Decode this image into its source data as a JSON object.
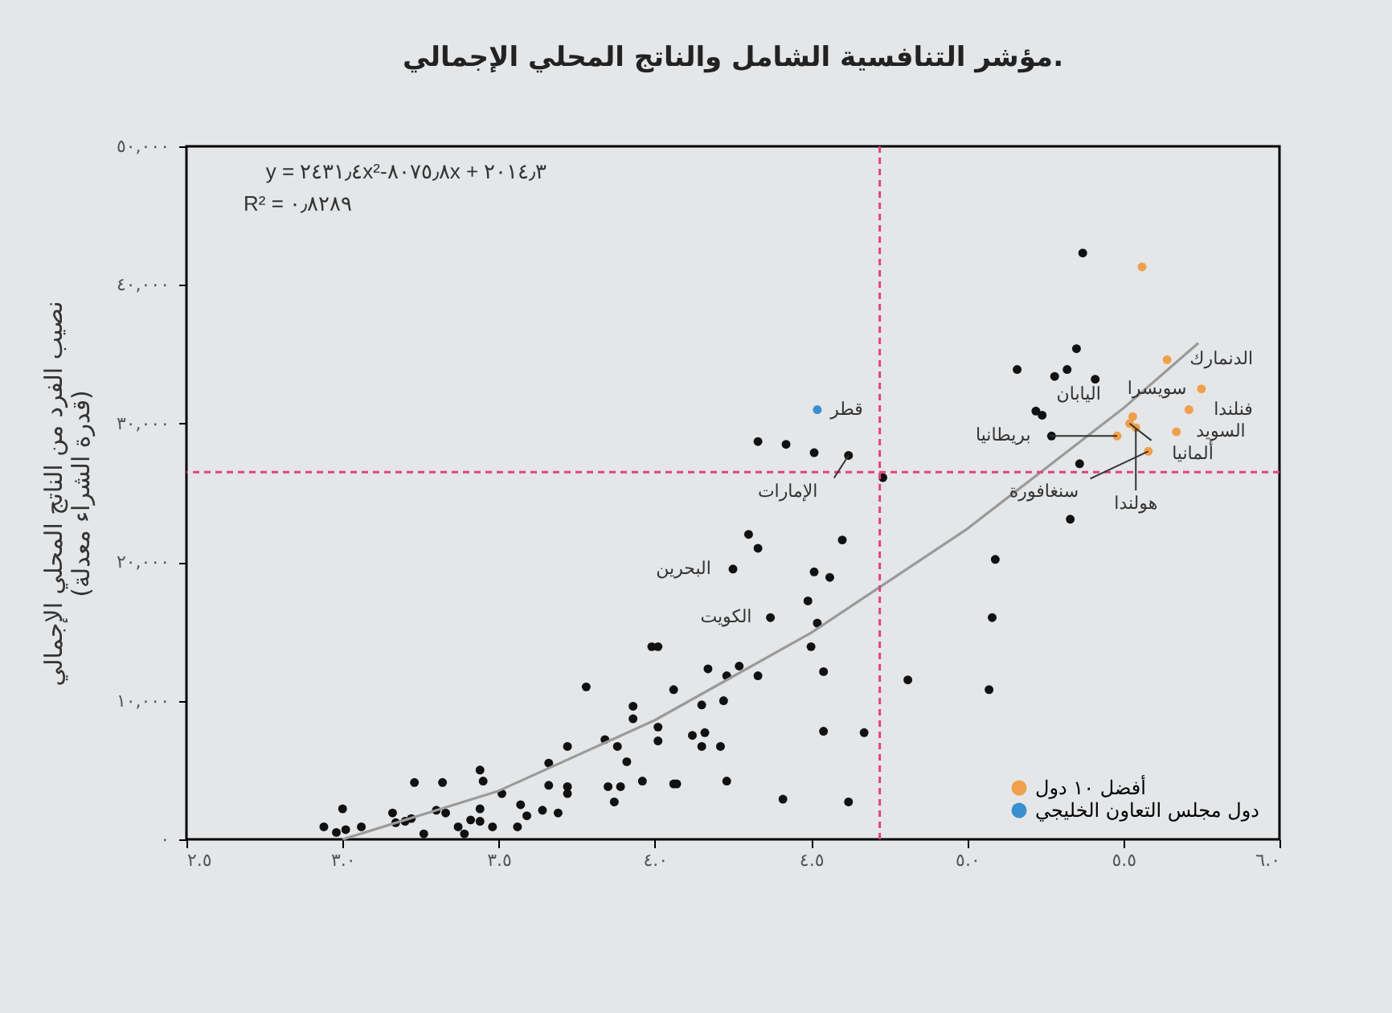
{
  "chart_data": {
    "type": "scatter",
    "title": "مؤشر التنافسية الشامل والناتج المحلي الإجمالي.",
    "ylabel": "نصيب الفرد من الناتج المحلي الإجمالي\n(قدرة الشراء معدلة)",
    "xlim": [
      2.5,
      6.0
    ],
    "ylim": [
      0,
      50000
    ],
    "xticks": [
      {
        "value": 2.5,
        "label": "٢.٥"
      },
      {
        "value": 3.0,
        "label": "٣.٠"
      },
      {
        "value": 3.5,
        "label": "٣.٥"
      },
      {
        "value": 4.0,
        "label": "٤.٠"
      },
      {
        "value": 4.5,
        "label": "٤.٥"
      },
      {
        "value": 5.0,
        "label": "٥.٠"
      },
      {
        "value": 5.5,
        "label": "٥.٥"
      },
      {
        "value": 6.0,
        "label": "٦.٠"
      }
    ],
    "yticks": [
      {
        "value": 0,
        "label": "٠"
      },
      {
        "value": 10000,
        "label": "١٠,٠٠٠"
      },
      {
        "value": 20000,
        "label": "٢٠,٠٠٠"
      },
      {
        "value": 30000,
        "label": "٣٠,٠٠٠"
      },
      {
        "value": 40000,
        "label": "٤٠,٠٠٠"
      },
      {
        "value": 50000,
        "label": "٥٠,٠٠٠"
      }
    ],
    "marker": "circle",
    "legend": "bottom right",
    "series": [
      {
        "color": "#111111",
        "x": [
          3.0,
          2.94,
          2.98,
          3.01,
          3.06,
          3.16,
          3.17,
          3.2,
          3.22,
          3.26,
          3.23,
          3.32,
          3.3,
          3.33,
          3.37,
          3.39,
          3.41,
          3.44,
          3.44,
          3.45,
          3.44,
          3.48,
          3.51,
          3.56,
          3.57,
          3.59,
          3.64,
          3.66,
          3.66,
          3.69,
          3.72,
          3.72,
          3.72,
          3.78,
          3.84,
          3.85,
          3.88,
          3.87,
          3.89,
          3.91,
          3.93,
          3.93,
          3.96,
          3.99,
          4.01,
          4.01,
          4.01,
          4.06,
          4.06,
          4.07,
          4.12,
          4.15,
          4.16,
          4.15,
          4.17,
          4.21,
          4.22,
          4.23,
          4.23,
          4.25,
          4.27,
          4.3,
          5.37,
          5.35,
          5.16,
          5.28,
          5.32,
          5.41,
          5.22,
          5.24,
          5.27,
          5.36,
          5.33,
          5.09,
          5.08,
          4.81,
          5.07,
          4.33,
          4.42,
          4.51,
          4.62,
          4.73,
          4.33,
          4.6,
          4.51,
          4.56,
          4.49,
          4.52,
          4.37,
          4.5,
          4.33,
          4.54,
          4.54,
          4.67,
          4.41,
          4.62
        ],
        "values": [
          2200,
          900,
          500,
          700,
          900,
          1900,
          1200,
          1300,
          1500,
          400,
          4100,
          4100,
          2100,
          1900,
          900,
          400,
          1400,
          2200,
          5000,
          4200,
          1300,
          900,
          3300,
          900,
          2500,
          1700,
          2100,
          3900,
          5500,
          1900,
          3300,
          3800,
          6700,
          11000,
          7200,
          3800,
          6700,
          2700,
          3800,
          5600,
          9600,
          8700,
          4200,
          13900,
          13900,
          8100,
          7100,
          10800,
          4000,
          4000,
          7500,
          9700,
          7700,
          6700,
          12300,
          6700,
          10000,
          11800,
          4200,
          19500,
          12500,
          22000,
          42300,
          35400,
          33900,
          33400,
          33900,
          33200,
          30900,
          30600,
          29100,
          27100,
          23100,
          20200,
          16000,
          11500,
          10800,
          28700,
          28500,
          27900,
          27700,
          26100,
          21000,
          21600,
          19300,
          18900,
          17200,
          15600,
          16000,
          13900,
          11800,
          12100,
          7800,
          7700,
          2900,
          2700
        ]
      },
      {
        "name": "أفضل ١٠ دول",
        "color": "#f0a04b",
        "x": [
          5.56,
          5.64,
          5.75,
          5.71,
          5.67,
          5.58,
          5.48,
          5.53,
          5.52,
          5.54
        ],
        "values": [
          41300,
          34600,
          32500,
          31000,
          29400,
          28000,
          29100,
          30500,
          30000,
          29700
        ]
      },
      {
        "name": "دول مجلس التعاون الخليجي",
        "color": "#3a8fd0",
        "x": [
          4.52
        ],
        "values": [
          31000
        ]
      },
      {
        "type": "line",
        "marker": "none",
        "color": "#9a9a9a",
        "x": [
          3.0,
          3.5,
          4.0,
          4.5,
          5.0,
          5.5,
          5.74
        ],
        "values": [
          0,
          3500,
          8600,
          14900,
          22400,
          31100,
          35800
        ]
      }
    ],
    "ref_lines": [
      {
        "axis": "x",
        "value": 4.72,
        "color": "#e0457b",
        "line_style": "dashed"
      },
      {
        "axis": "y",
        "value": 26500,
        "color": "#e0457b",
        "line_style": "dashed"
      }
    ],
    "annotations": [
      "y = ٢٤٣١٫٤x²-٨٠٧٥٫٨x + ٢٠١٤٫٣",
      "R² = ٠٫٨٢٨٩",
      {
        "text": "قطر",
        "x": 4.52,
        "y": 31000
      },
      {
        "text": "الإمارات",
        "x": 4.62,
        "y": 27700
      },
      {
        "text": "البحرين",
        "x": 4.25,
        "y": 19500
      },
      {
        "text": "الكويت",
        "x": 4.37,
        "y": 16000
      },
      {
        "text": "الدنمارك",
        "x": 5.64,
        "y": 34600
      },
      {
        "text": "سويسرا",
        "x": 5.75,
        "y": 32500
      },
      {
        "text": "فنلندا",
        "x": 5.71,
        "y": 31000
      },
      {
        "text": "اليابان",
        "x": 5.53,
        "y": 30500
      },
      {
        "text": "ألمانيا",
        "x": 5.52,
        "y": 30000
      },
      {
        "text": "هولندا",
        "x": 5.54,
        "y": 29700
      },
      {
        "text": "السويد",
        "x": 5.67,
        "y": 29400
      },
      {
        "text": "بريطانيا",
        "x": 5.48,
        "y": 29100
      },
      {
        "text": "سنغافورة",
        "x": 5.58,
        "y": 28000
      }
    ]
  }
}
